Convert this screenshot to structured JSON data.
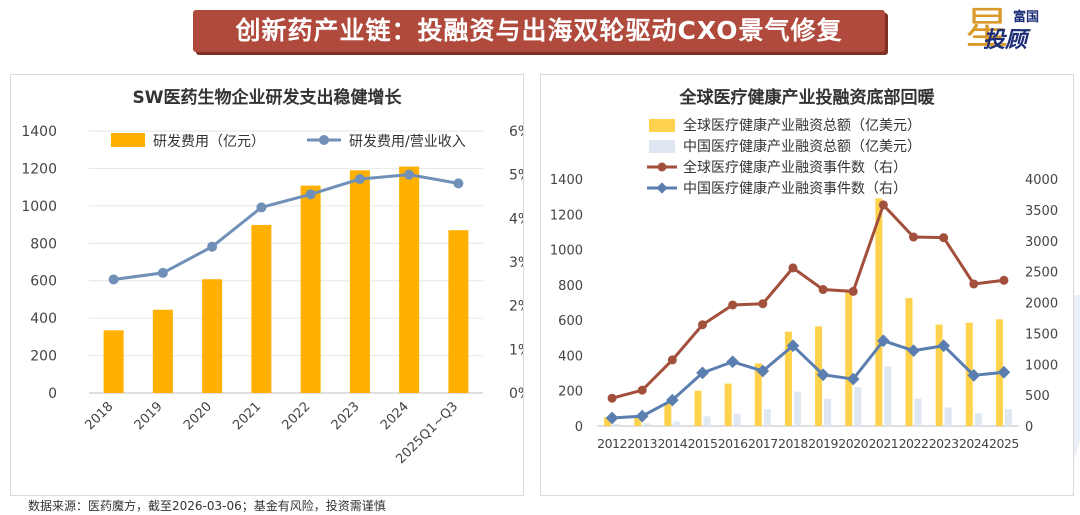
{
  "banner": {
    "title": "创新药产业链：投融资与出海双轮驱动CXO景气修复"
  },
  "logo": {
    "line1": "富国",
    "line2": "投顾",
    "star_glyph": "星"
  },
  "source_note": "数据来源：医药魔方，截至2026-03-06；基金有风险，投资需谨慎",
  "colors": {
    "gold": "#ffb000",
    "blue_line": "#7090b8",
    "light_gold": "#ffd24d",
    "light_blue": "#dfe7f2",
    "brown": "#a24f3c",
    "blue_marker": "#5a7eb0"
  },
  "chart_data": [
    {
      "type": "bar",
      "title": "SW医药生物企业研发支出稳健增长",
      "categories": [
        "2018",
        "2019",
        "2020",
        "2021",
        "2022",
        "2023",
        "2024",
        "2025Q1~Q3"
      ],
      "series": [
        {
          "name": "研发费用（亿元）",
          "type": "bar",
          "axis": "left",
          "values": [
            335,
            445,
            608,
            898,
            1108,
            1190,
            1210,
            870
          ]
        },
        {
          "name": "研发费用/营业收入",
          "type": "line",
          "axis": "right",
          "values": [
            2.6,
            2.75,
            3.35,
            4.25,
            4.55,
            4.9,
            5.0,
            4.8
          ]
        }
      ],
      "ylim": [
        0,
        1400
      ],
      "yticks": [
        0,
        200,
        400,
        600,
        800,
        1000,
        1200,
        1400
      ],
      "y2lim": [
        0,
        6
      ],
      "y2ticks": [
        "0%",
        "1%",
        "2%",
        "3%",
        "4%",
        "5%",
        "6%"
      ],
      "legend": [
        "研发费用（亿元）",
        "研发费用/营业收入"
      ]
    },
    {
      "type": "bar",
      "title": "全球医疗健康产业投融资底部回暖",
      "categories": [
        "2012",
        "2013",
        "2014",
        "2015",
        "2016",
        "2017",
        "2018",
        "2019",
        "2020",
        "2021",
        "2022",
        "2023",
        "2024",
        "2025"
      ],
      "series": [
        {
          "name": "全球医疗健康产业融资总额（亿美元）",
          "type": "bar",
          "axis": "left",
          "values": [
            50,
            55,
            130,
            200,
            240,
            355,
            535,
            565,
            760,
            1290,
            725,
            575,
            585,
            605
          ]
        },
        {
          "name": "中国医疗健康产业融资总额（亿美元）",
          "type": "bar",
          "axis": "left",
          "values": [
            12,
            15,
            25,
            55,
            70,
            95,
            195,
            155,
            220,
            340,
            155,
            105,
            72,
            95
          ]
        },
        {
          "name": "全球医疗健康产业融资事件数（右）",
          "type": "line",
          "axis": "right",
          "values": [
            450,
            580,
            1070,
            1640,
            1960,
            1980,
            2560,
            2210,
            2180,
            3580,
            3060,
            3050,
            2300,
            2360
          ]
        },
        {
          "name": "中国医疗健康产业融资事件数（右）",
          "type": "line",
          "axis": "right",
          "values": [
            130,
            160,
            420,
            860,
            1040,
            890,
            1300,
            830,
            760,
            1380,
            1220,
            1300,
            820,
            870
          ]
        }
      ],
      "ylim": [
        0,
        1400
      ],
      "yticks": [
        0,
        200,
        400,
        600,
        800,
        1000,
        1200,
        1400
      ],
      "y2lim": [
        0,
        4000
      ],
      "y2ticks": [
        0,
        500,
        1000,
        1500,
        2000,
        2500,
        3000,
        3500,
        4000
      ],
      "legend": [
        "全球医疗健康产业融资总额（亿美元）",
        "中国医疗健康产业融资总额（亿美元）",
        "全球医疗健康产业融资事件数（右）",
        "中国医疗健康产业融资事件数（右）"
      ]
    }
  ]
}
